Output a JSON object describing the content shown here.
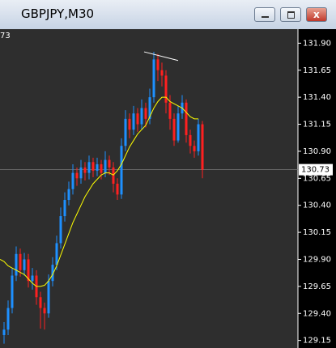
{
  "window_title": "GBPJPY,M30",
  "chart_data": {
    "type": "candlestick",
    "corner_label": "73",
    "open": [
      129.2,
      129.25,
      129.45,
      129.75,
      129.95,
      129.8,
      129.9,
      129.7,
      129.75,
      129.55,
      129.45,
      129.4,
      129.7,
      129.85,
      130.05,
      130.3,
      130.45,
      130.55,
      130.7,
      130.65,
      130.75,
      130.7,
      130.8,
      130.72,
      130.78,
      130.7,
      130.82,
      130.75,
      130.6,
      130.5,
      130.95,
      131.2,
      131.1,
      131.25,
      131.15,
      131.3,
      131.2,
      131.4,
      131.75,
      131.65,
      131.6,
      131.35,
      131.2,
      131.0,
      131.25,
      131.35,
      131.05,
      130.95,
      130.9,
      131.15
    ],
    "high": [
      129.32,
      129.52,
      129.82,
      130.02,
      130.0,
      129.96,
      129.95,
      129.82,
      129.8,
      129.6,
      129.5,
      129.76,
      129.92,
      130.12,
      130.38,
      130.52,
      130.62,
      130.78,
      130.75,
      130.82,
      130.8,
      130.86,
      130.84,
      130.84,
      130.82,
      130.9,
      130.86,
      130.8,
      130.65,
      131.02,
      131.28,
      131.25,
      131.32,
      131.3,
      131.38,
      131.35,
      131.48,
      131.82,
      131.8,
      131.72,
      131.65,
      131.42,
      131.25,
      131.32,
      131.42,
      131.38,
      131.1,
      131.0,
      131.2,
      131.18
    ],
    "low": [
      129.12,
      129.2,
      129.4,
      129.7,
      129.74,
      129.75,
      129.64,
      129.62,
      129.48,
      129.26,
      129.25,
      129.36,
      129.65,
      129.8,
      130.0,
      130.25,
      130.4,
      130.5,
      130.58,
      130.6,
      130.63,
      130.64,
      130.66,
      130.67,
      130.64,
      130.66,
      130.68,
      130.52,
      130.45,
      130.46,
      130.9,
      131.02,
      131.05,
      131.08,
      131.1,
      131.12,
      131.15,
      131.35,
      131.55,
      131.5,
      131.25,
      131.1,
      130.95,
      130.98,
      131.2,
      130.98,
      130.88,
      130.84,
      130.86,
      130.65
    ],
    "close": [
      129.25,
      129.45,
      129.75,
      129.95,
      129.8,
      129.9,
      129.7,
      129.75,
      129.55,
      129.45,
      129.4,
      129.7,
      129.85,
      130.05,
      130.3,
      130.45,
      130.55,
      130.7,
      130.65,
      130.75,
      130.7,
      130.8,
      130.72,
      130.78,
      130.7,
      130.82,
      130.75,
      130.6,
      130.5,
      130.95,
      131.2,
      131.1,
      131.25,
      131.15,
      131.3,
      131.2,
      131.4,
      131.75,
      131.65,
      131.6,
      131.35,
      131.2,
      131.0,
      131.25,
      131.35,
      131.05,
      130.95,
      130.9,
      131.15,
      130.73
    ],
    "up_color": "#1e90ff",
    "down_color": "#ff2020",
    "moving_average": {
      "color": "#ffff00",
      "values": [
        129.9,
        129.88,
        129.84,
        129.82,
        129.8,
        129.78,
        129.76,
        129.72,
        129.68,
        129.65,
        129.65,
        129.66,
        129.7,
        129.76,
        129.84,
        129.94,
        130.04,
        130.14,
        130.24,
        130.32,
        130.4,
        130.48,
        130.54,
        130.6,
        130.64,
        130.68,
        130.7,
        130.7,
        130.68,
        130.72,
        130.78,
        130.86,
        130.94,
        131.0,
        131.06,
        131.1,
        131.14,
        131.22,
        131.3,
        131.36,
        131.4,
        131.4,
        131.36,
        131.34,
        131.32,
        131.3,
        131.26,
        131.22,
        131.2,
        131.2
      ]
    },
    "trendline": {
      "color": "#ffffff",
      "values": [
        131.82,
        131.74
      ]
    },
    "current_price": 130.73,
    "ylim": [
      129.08,
      132.03
    ],
    "yticks": [
      {
        "value": 131.9,
        "label": "131.90"
      },
      131.65,
      {
        "value": 131.4,
        "label": "131.40"
      },
      131.15,
      {
        "value": 130.9,
        "label": "130.90"
      },
      130.65,
      {
        "value": 130.4,
        "label": "130.40"
      },
      130.15,
      {
        "value": 129.9,
        "label": "129.90"
      },
      129.65,
      {
        "value": 129.4,
        "label": "129.40"
      },
      129.15
    ]
  }
}
